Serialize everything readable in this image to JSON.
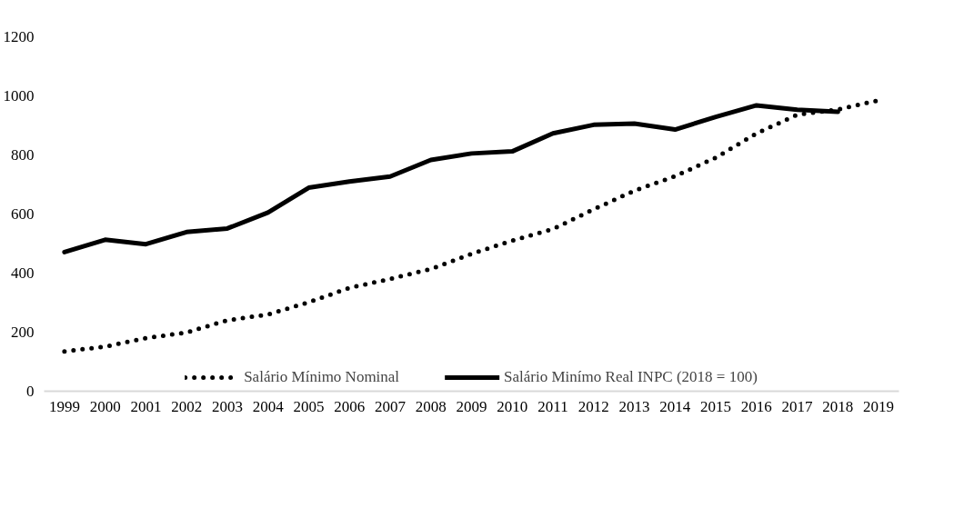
{
  "chart_data": {
    "type": "line",
    "categories": [
      "1999",
      "2000",
      "2001",
      "2002",
      "2003",
      "2004",
      "2005",
      "2006",
      "2007",
      "2008",
      "2009",
      "2010",
      "2011",
      "2012",
      "2013",
      "2014",
      "2015",
      "2016",
      "2017",
      "2018",
      "2019"
    ],
    "series": [
      {
        "name": "Salário Mínimo Nominal",
        "color": "#000000",
        "line_style": "dotted",
        "values": [
          135,
          151,
          180,
          199,
          240,
          260,
          301,
          350,
          380,
          414,
          465,
          510,
          549,
          616,
          679,
          728,
          791,
          873,
          936,
          954,
          985
        ]
      },
      {
        "name": "Salário Minímo Real INPC (2018 = 100)",
        "color": "#000000",
        "line_style": "solid",
        "values": [
          471,
          513,
          498,
          539,
          551,
          605,
          689,
          710,
          727,
          783,
          805,
          812,
          873,
          902,
          906,
          886,
          929,
          968,
          953,
          946,
          null
        ]
      }
    ],
    "ylim": [
      0,
      1200
    ],
    "yticks": [
      0,
      200,
      400,
      600,
      800,
      1000,
      1200
    ],
    "grid": false,
    "legend": "bottom",
    "marker": "none"
  }
}
